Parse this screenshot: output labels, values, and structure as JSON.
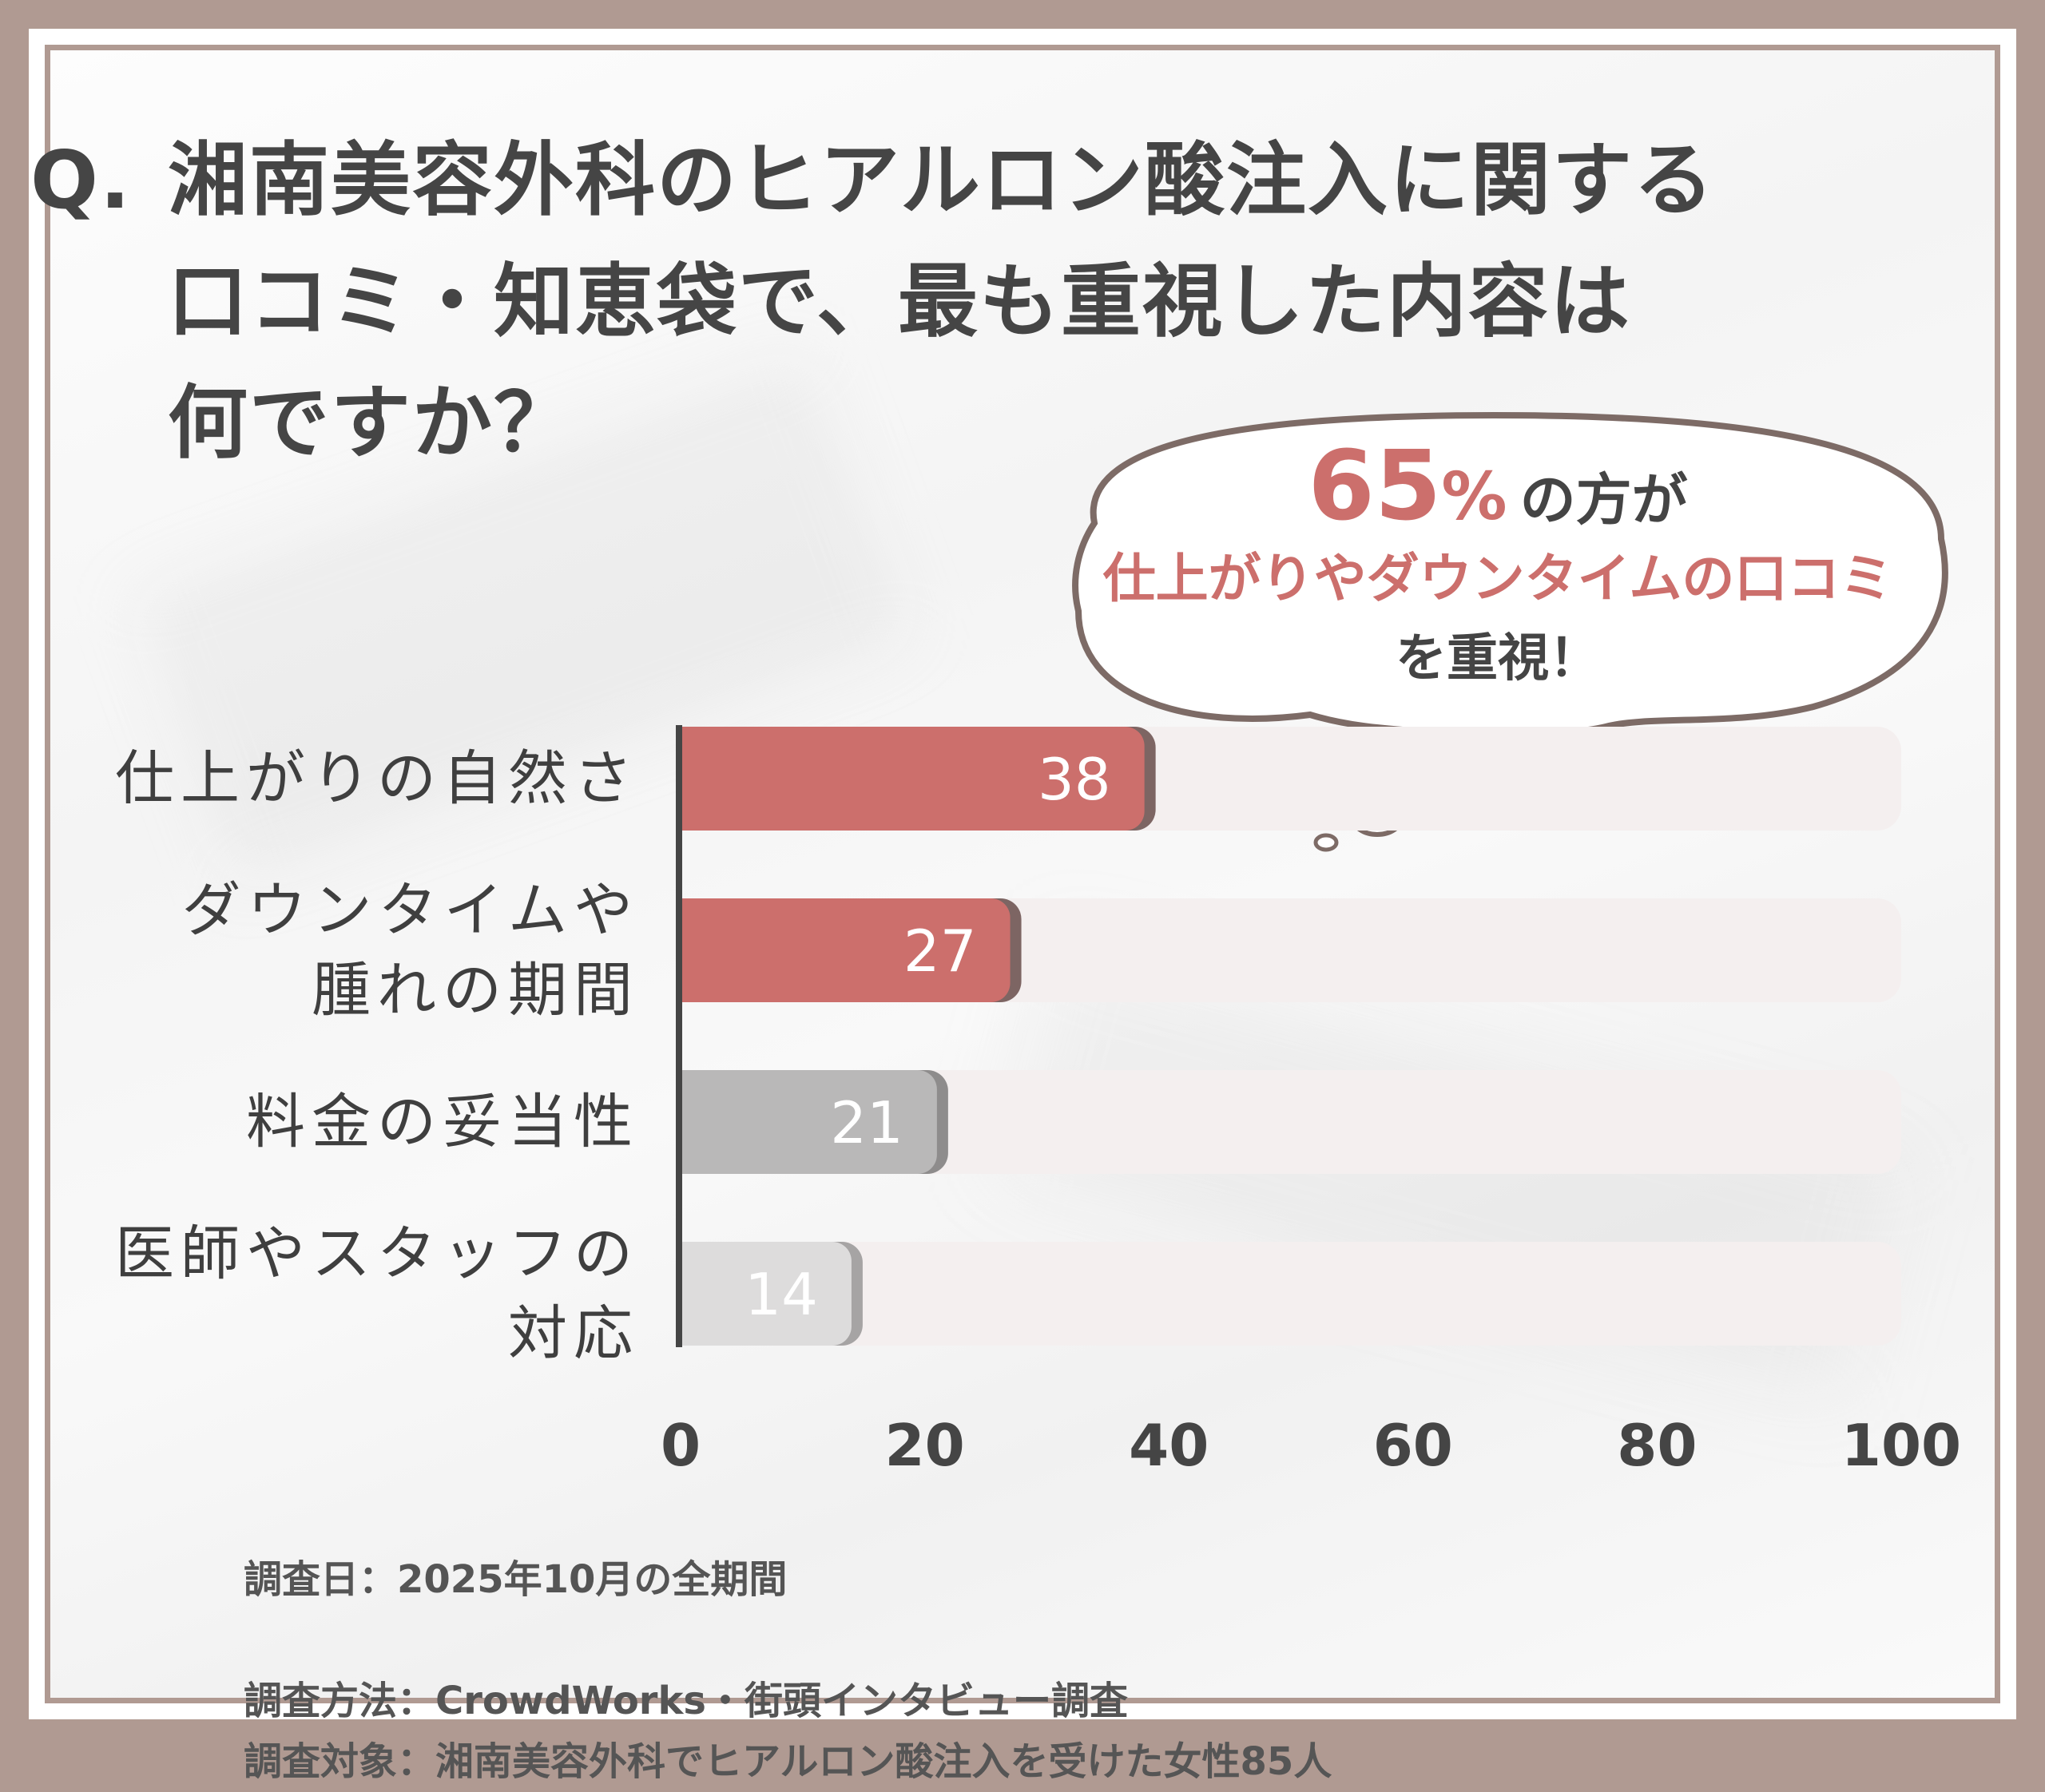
{
  "title": {
    "q": "Q.",
    "lines": [
      "湘南美容外科のヒアルロン酸注入に関する",
      "口コミ・知恵袋で、最も重視した内容は",
      "何ですか？"
    ]
  },
  "callout": {
    "percent": "65",
    "percent_sign": "%",
    "line1_rest": "の方が",
    "line2": "仕上がりやダウンタイムの口コミ",
    "line3": "を重視！"
  },
  "colors": {
    "accent": "#cc6f6c",
    "gray": "#b9b8b8",
    "light_gray": "#dddcdc",
    "track": "#f4efef",
    "frame": "#b09a92"
  },
  "chart_data": {
    "type": "bar",
    "orientation": "horizontal",
    "categories": [
      [
        "仕上がりの自然さ"
      ],
      [
        "ダウンタイムや",
        "腫れの期間"
      ],
      [
        "料金の妥当性"
      ],
      [
        "医師やスタッフの",
        "対応"
      ]
    ],
    "values": [
      38,
      27,
      21,
      14
    ],
    "value_labels": [
      "38",
      "27",
      "21",
      "14"
    ],
    "xlim": [
      0,
      100
    ],
    "xticks": [
      "0",
      "20",
      "40",
      "60",
      "80",
      "100"
    ],
    "grid": false,
    "legend": "none"
  },
  "footer": {
    "date": "調査日：2025年10月の全期間",
    "method": "調査方法：CrowdWorks・街頭インタビュー調査",
    "target": "調査対象：湘南美容外科でヒアルロン酸注入を受けた女性85人"
  }
}
